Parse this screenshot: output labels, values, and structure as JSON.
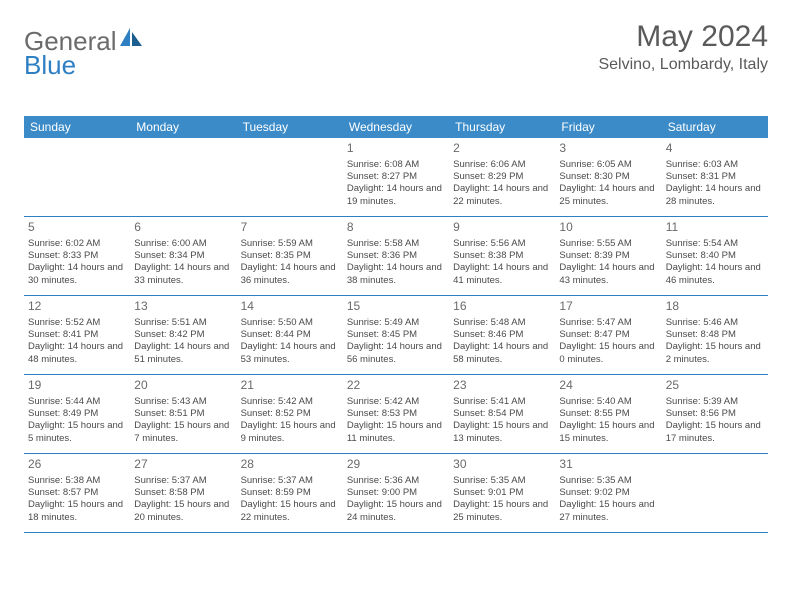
{
  "logo": {
    "text1": "General",
    "text2": "Blue"
  },
  "title": "May 2024",
  "location": "Selvino, Lombardy, Italy",
  "weekdays": [
    "Sunday",
    "Monday",
    "Tuesday",
    "Wednesday",
    "Thursday",
    "Friday",
    "Saturday"
  ],
  "colors": {
    "header_bg": "#3b8bc9",
    "border": "#2f7fc3",
    "text_gray": "#5a5a5a"
  },
  "weeks": [
    [
      null,
      null,
      null,
      {
        "n": "1",
        "sr": "6:08 AM",
        "ss": "8:27 PM",
        "dl": "14 hours and 19 minutes."
      },
      {
        "n": "2",
        "sr": "6:06 AM",
        "ss": "8:29 PM",
        "dl": "14 hours and 22 minutes."
      },
      {
        "n": "3",
        "sr": "6:05 AM",
        "ss": "8:30 PM",
        "dl": "14 hours and 25 minutes."
      },
      {
        "n": "4",
        "sr": "6:03 AM",
        "ss": "8:31 PM",
        "dl": "14 hours and 28 minutes."
      }
    ],
    [
      {
        "n": "5",
        "sr": "6:02 AM",
        "ss": "8:33 PM",
        "dl": "14 hours and 30 minutes."
      },
      {
        "n": "6",
        "sr": "6:00 AM",
        "ss": "8:34 PM",
        "dl": "14 hours and 33 minutes."
      },
      {
        "n": "7",
        "sr": "5:59 AM",
        "ss": "8:35 PM",
        "dl": "14 hours and 36 minutes."
      },
      {
        "n": "8",
        "sr": "5:58 AM",
        "ss": "8:36 PM",
        "dl": "14 hours and 38 minutes."
      },
      {
        "n": "9",
        "sr": "5:56 AM",
        "ss": "8:38 PM",
        "dl": "14 hours and 41 minutes."
      },
      {
        "n": "10",
        "sr": "5:55 AM",
        "ss": "8:39 PM",
        "dl": "14 hours and 43 minutes."
      },
      {
        "n": "11",
        "sr": "5:54 AM",
        "ss": "8:40 PM",
        "dl": "14 hours and 46 minutes."
      }
    ],
    [
      {
        "n": "12",
        "sr": "5:52 AM",
        "ss": "8:41 PM",
        "dl": "14 hours and 48 minutes."
      },
      {
        "n": "13",
        "sr": "5:51 AM",
        "ss": "8:42 PM",
        "dl": "14 hours and 51 minutes."
      },
      {
        "n": "14",
        "sr": "5:50 AM",
        "ss": "8:44 PM",
        "dl": "14 hours and 53 minutes."
      },
      {
        "n": "15",
        "sr": "5:49 AM",
        "ss": "8:45 PM",
        "dl": "14 hours and 56 minutes."
      },
      {
        "n": "16",
        "sr": "5:48 AM",
        "ss": "8:46 PM",
        "dl": "14 hours and 58 minutes."
      },
      {
        "n": "17",
        "sr": "5:47 AM",
        "ss": "8:47 PM",
        "dl": "15 hours and 0 minutes."
      },
      {
        "n": "18",
        "sr": "5:46 AM",
        "ss": "8:48 PM",
        "dl": "15 hours and 2 minutes."
      }
    ],
    [
      {
        "n": "19",
        "sr": "5:44 AM",
        "ss": "8:49 PM",
        "dl": "15 hours and 5 minutes."
      },
      {
        "n": "20",
        "sr": "5:43 AM",
        "ss": "8:51 PM",
        "dl": "15 hours and 7 minutes."
      },
      {
        "n": "21",
        "sr": "5:42 AM",
        "ss": "8:52 PM",
        "dl": "15 hours and 9 minutes."
      },
      {
        "n": "22",
        "sr": "5:42 AM",
        "ss": "8:53 PM",
        "dl": "15 hours and 11 minutes."
      },
      {
        "n": "23",
        "sr": "5:41 AM",
        "ss": "8:54 PM",
        "dl": "15 hours and 13 minutes."
      },
      {
        "n": "24",
        "sr": "5:40 AM",
        "ss": "8:55 PM",
        "dl": "15 hours and 15 minutes."
      },
      {
        "n": "25",
        "sr": "5:39 AM",
        "ss": "8:56 PM",
        "dl": "15 hours and 17 minutes."
      }
    ],
    [
      {
        "n": "26",
        "sr": "5:38 AM",
        "ss": "8:57 PM",
        "dl": "15 hours and 18 minutes."
      },
      {
        "n": "27",
        "sr": "5:37 AM",
        "ss": "8:58 PM",
        "dl": "15 hours and 20 minutes."
      },
      {
        "n": "28",
        "sr": "5:37 AM",
        "ss": "8:59 PM",
        "dl": "15 hours and 22 minutes."
      },
      {
        "n": "29",
        "sr": "5:36 AM",
        "ss": "9:00 PM",
        "dl": "15 hours and 24 minutes."
      },
      {
        "n": "30",
        "sr": "5:35 AM",
        "ss": "9:01 PM",
        "dl": "15 hours and 25 minutes."
      },
      {
        "n": "31",
        "sr": "5:35 AM",
        "ss": "9:02 PM",
        "dl": "15 hours and 27 minutes."
      },
      null
    ]
  ],
  "labels": {
    "sunrise": "Sunrise: ",
    "sunset": "Sunset: ",
    "daylight": "Daylight: "
  }
}
